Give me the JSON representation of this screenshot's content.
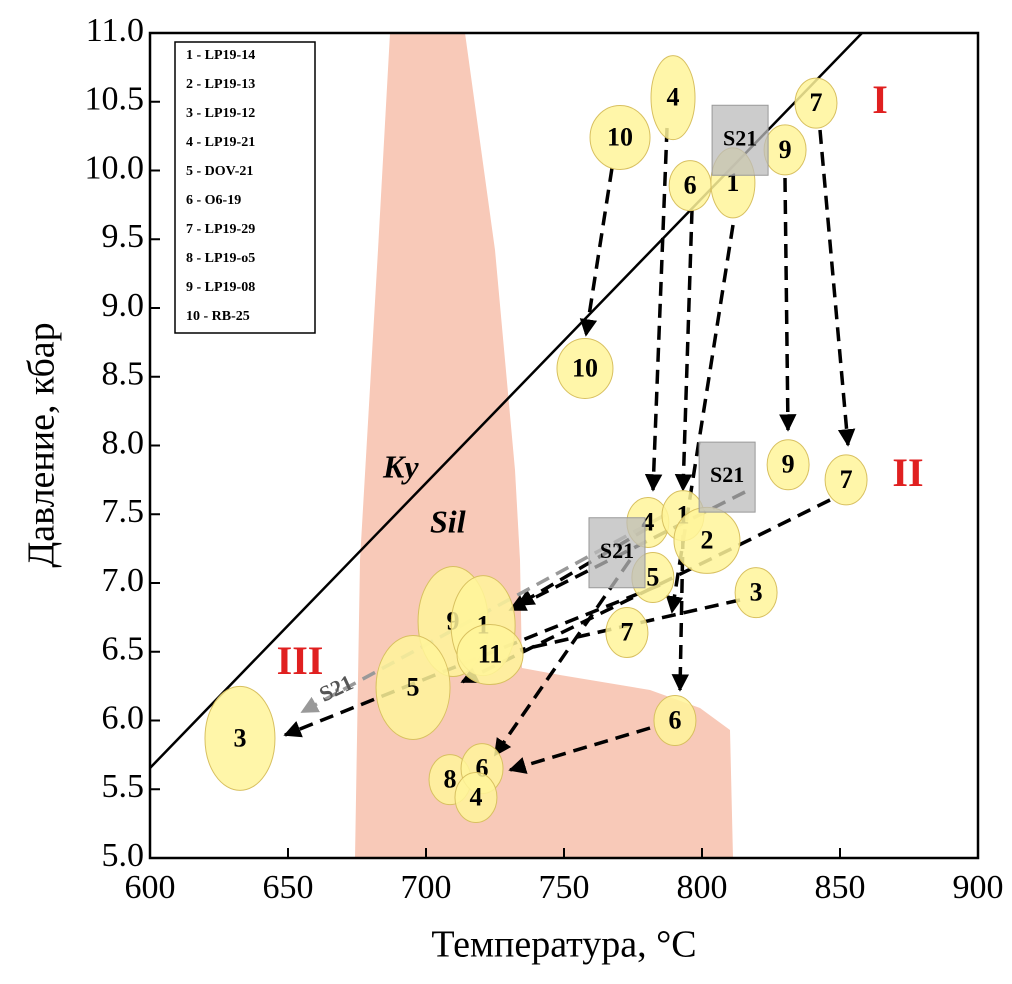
{
  "chart_data": {
    "type": "scatter",
    "xlabel": "Температура, °C",
    "ylabel": "Давление, кбар",
    "xlim": [
      600,
      900
    ],
    "xticks": [
      600,
      650,
      700,
      750,
      800,
      850,
      900
    ],
    "ylim": [
      5,
      11
    ],
    "yticks": [
      {
        "value": 5,
        "label": "5.0"
      },
      {
        "value": 5.5,
        "label": "5.5"
      },
      {
        "value": 6,
        "label": "6.0"
      },
      {
        "value": 6.5,
        "label": "6.5"
      },
      {
        "value": 7,
        "label": "7.0"
      },
      {
        "value": 7.5,
        "label": "7.5"
      },
      {
        "value": 8,
        "label": "8.0"
      },
      {
        "value": 8.5,
        "label": "8.5"
      },
      {
        "value": 9,
        "label": "9.0"
      },
      {
        "value": 9.5,
        "label": "9.5"
      },
      {
        "value": 10,
        "label": "10.0"
      },
      {
        "value": 10.5,
        "label": "10.5"
      },
      {
        "value": 11,
        "label": "11.0"
      }
    ],
    "legend": [
      "1 - LP19-14",
      "2 - LP19-13",
      "3 - LP19-12",
      "4 - LP19-21",
      "5 - DOV-21",
      "6 - O6-19",
      "7 - LP19-29",
      "8 - LP19-o5",
      "9 - LP19-08",
      "10 - RB-25"
    ],
    "phase_labels": [
      "Ky",
      "Sil"
    ],
    "series": [
      {
        "name": "I",
        "color": "#fff59a",
        "labels": [
          "10",
          "4",
          "7",
          "9",
          "6",
          "1"
        ],
        "x": [
          770.3,
          789.5,
          841.3,
          830.1,
          795.7,
          811.2
        ],
        "values": [
          10.24,
          10.53,
          10.49,
          10.15,
          9.89,
          9.91
        ]
      },
      {
        "name": "II",
        "color": "#fff59a",
        "labels": [
          "10",
          "9",
          "7",
          "4",
          "1",
          "2",
          "5",
          "3",
          "7",
          "6"
        ],
        "x": [
          757.6,
          831.2,
          852.2,
          780.4,
          793.1,
          801.8,
          782.2,
          819.6,
          772.8,
          790.2
        ],
        "values": [
          8.56,
          7.86,
          7.75,
          7.44,
          7.49,
          7.31,
          7.04,
          6.93,
          6.64,
          6.0
        ]
      },
      {
        "name": "III",
        "color": "#fff59a",
        "labels": [
          "9",
          "1",
          "11",
          "5",
          "3",
          "8",
          "6",
          "4"
        ],
        "x": [
          709.8,
          720.7,
          723.2,
          695.3,
          632.6,
          708.7,
          720.3,
          718.1
        ],
        "values": [
          6.72,
          6.69,
          6.48,
          6.24,
          5.87,
          5.57,
          5.65,
          5.44
        ]
      }
    ],
    "s21": {
      "label": "S21",
      "x": [
        813.8,
        809.1,
        769.2,
        667.8
      ],
      "values": [
        10.22,
        7.77,
        7.22,
        6.22
      ]
    }
  }
}
